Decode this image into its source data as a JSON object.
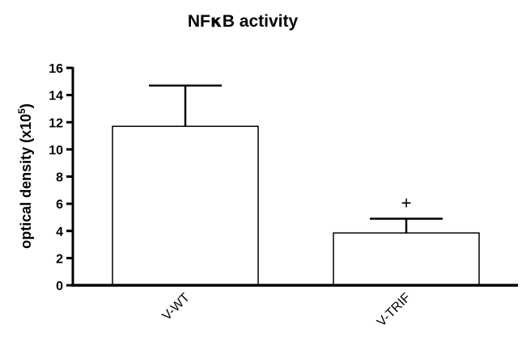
{
  "chart_data": {
    "type": "bar",
    "title_prefix": "NF",
    "title_symbol": "κ",
    "title_suffix": "B activity",
    "ylabel_main": "optical density (x10",
    "ylabel_sup": "5",
    "ylabel_close": ")",
    "xlabel": "",
    "categories": [
      "V-WT",
      "V-TRIF"
    ],
    "values": [
      11.7,
      3.85
    ],
    "errors": [
      3.0,
      1.05
    ],
    "annotations": [
      "",
      "+"
    ],
    "ylim": [
      0,
      16
    ],
    "yticks": [
      "0",
      "2",
      "4",
      "6",
      "8",
      "10",
      "12",
      "14",
      "16"
    ],
    "grid": false,
    "bar_fill": "#ffffff",
    "bar_stroke": "#000000"
  }
}
